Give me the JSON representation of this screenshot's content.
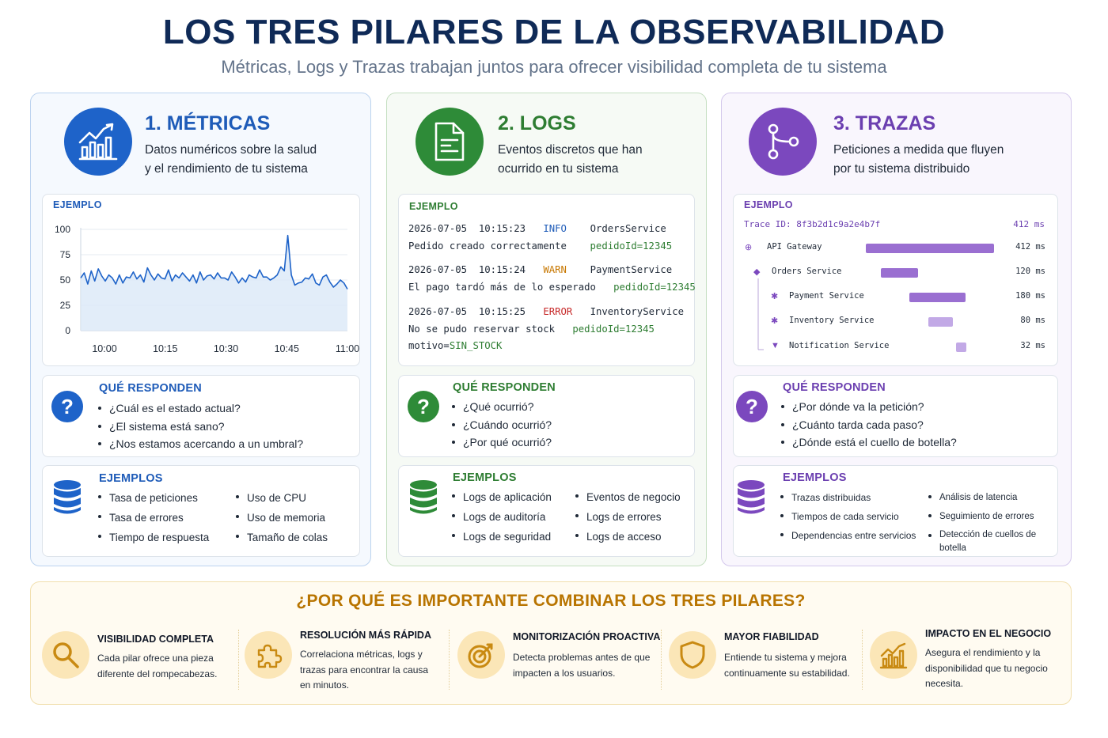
{
  "header": {
    "title": "LOS TRES PILARES DE LA OBSERVABILIDAD",
    "subtitle": "Métricas, Logs y Trazas trabajan juntos para ofrecer visibilidad completa de tu sistema"
  },
  "colors": {
    "metrics": "#1e63c9",
    "logs": "#2e8b38",
    "traces": "#7b48be",
    "accent": "#b87400"
  },
  "metrics": {
    "heading": "1. MÉTRICAS",
    "desc_line1": "Datos numéricos sobre la salud",
    "desc_line2": "y el rendimiento de tu sistema",
    "icon": "bar-chart-trend-icon",
    "example_label": "EJEMPLO",
    "chart_data": {
      "type": "area",
      "x_ticks": [
        "10:00",
        "10:15",
        "10:30",
        "10:45",
        "11:00"
      ],
      "y_ticks": [
        "100",
        "75",
        "50",
        "25",
        "0"
      ],
      "ylim": [
        0,
        100
      ],
      "values": [
        52,
        57,
        46,
        59,
        49,
        61,
        54,
        49,
        55,
        52,
        46,
        55,
        47,
        53,
        52,
        58,
        51,
        55,
        48,
        62,
        55,
        50,
        56,
        52,
        51,
        60,
        49,
        55,
        52,
        57,
        53,
        49,
        55,
        47,
        58,
        50,
        54,
        55,
        51,
        57,
        52,
        52,
        50,
        58,
        53,
        47,
        52,
        48,
        55,
        53,
        52,
        60,
        53,
        53,
        50,
        52,
        55,
        63,
        59,
        94,
        55,
        45,
        47,
        48,
        52,
        51,
        56,
        47,
        45,
        53,
        55,
        48,
        43,
        46,
        50,
        47,
        41
      ]
    },
    "questions_title": "QUÉ RESPONDEN",
    "questions": [
      "¿Cuál es el estado actual?",
      "¿El sistema está sano?",
      "¿Nos estamos acercando a un umbral?"
    ],
    "examples_title": "EJEMPLOS",
    "examples_col1": [
      "Tasa de peticiones",
      "Tasa de errores",
      "Tiempo de respuesta"
    ],
    "examples_col2": [
      "Uso de CPU",
      "Uso de memoria",
      "Tamaño de colas"
    ]
  },
  "logs": {
    "heading": "2. LOGS",
    "desc_line1": "Eventos discretos que han",
    "desc_line2": "ocurrido en tu sistema",
    "icon": "document-icon",
    "example_label": "EJEMPLO",
    "entries": [
      {
        "date": "2026-07-05",
        "time": "10:15:23",
        "level": "INFO",
        "service": "OrdersService",
        "message": "Pedido creado correctamente",
        "id": "pedidoId=12345"
      },
      {
        "date": "2026-07-05",
        "time": "10:15:24",
        "level": "WARN",
        "service": "PaymentService",
        "message": "El pago tardó más de lo esperado",
        "id": "pedidoId=12345"
      },
      {
        "date": "2026-07-05",
        "time": "10:15:25",
        "level": "ERROR",
        "service": "InventoryService",
        "message": "No se pudo reservar stock",
        "id": "pedidoId=12345",
        "extra_key": "motivo=",
        "extra_value": "SIN_STOCK"
      }
    ],
    "questions_title": "QUÉ RESPONDEN",
    "questions": [
      "¿Qué ocurrió?",
      "¿Cuándo ocurrió?",
      "¿Por qué ocurrió?"
    ],
    "examples_title": "EJEMPLOS",
    "examples_col1": [
      "Logs de aplicación",
      "Logs de auditoría",
      "Logs de seguridad"
    ],
    "examples_col2": [
      "Eventos de negocio",
      "Logs de errores",
      "Logs de acceso"
    ]
  },
  "traces": {
    "heading": "3. TRAZAS",
    "desc_line1": "Peticiones a medida que fluyen",
    "desc_line2": "por tu sistema distribuido",
    "icon": "distributed-trace-icon",
    "example_label": "EJEMPLO",
    "trace_id": "Trace ID: 8f3b2d1c9a2e4b7f",
    "trace_total": "412 ms",
    "spans": [
      {
        "name": "API Gateway",
        "duration": "412 ms",
        "ms": 412,
        "start_ms": 0
      },
      {
        "name": "Orders Service",
        "duration": "120 ms",
        "ms": 120,
        "start_ms": 48
      },
      {
        "name": "Payment Service",
        "duration": "180 ms",
        "ms": 180,
        "start_ms": 140
      },
      {
        "name": "Inventory Service",
        "duration": "80 ms",
        "ms": 80,
        "start_ms": 200
      },
      {
        "name": "Notification Service",
        "duration": "32 ms",
        "ms": 32,
        "start_ms": 290
      }
    ],
    "questions_title": "QUÉ RESPONDEN",
    "questions": [
      "¿Por dónde va la petición?",
      "¿Cuánto tarda cada paso?",
      "¿Dónde está el cuello de botella?"
    ],
    "examples_title": "EJEMPLOS",
    "examples_col1": [
      "Trazas distribuidas",
      "Tiempos de cada servicio",
      "Dependencias entre servicios"
    ],
    "examples_col2": [
      "Análisis de latencia",
      "Seguimiento de errores",
      "Detección de cuellos de botella"
    ]
  },
  "bottom": {
    "title": "¿POR QUÉ ES IMPORTANTE COMBINAR LOS TRES PILARES?",
    "benefits": [
      {
        "title": "VISIBILIDAD COMPLETA",
        "text": "Cada pilar ofrece una pieza diferente del rompecabezas.",
        "icon": "magnifier-icon"
      },
      {
        "title": "RESOLUCIÓN MÁS RÁPIDA",
        "text": "Correlaciona métricas, logs y trazas para encontrar la causa en minutos.",
        "icon": "puzzle-icon"
      },
      {
        "title": "MONITORIZACIÓN PROACTIVA",
        "text": "Detecta problemas antes de que impacten a los usuarios.",
        "icon": "target-icon"
      },
      {
        "title": "MAYOR FIABILIDAD",
        "text": "Entiende tu sistema y mejora continuamente su estabilidad.",
        "icon": "shield-icon"
      },
      {
        "title": "IMPACTO EN EL NEGOCIO",
        "text": "Asegura el rendimiento y la disponibilidad que tu negocio necesita.",
        "icon": "business-chart-icon"
      }
    ]
  }
}
